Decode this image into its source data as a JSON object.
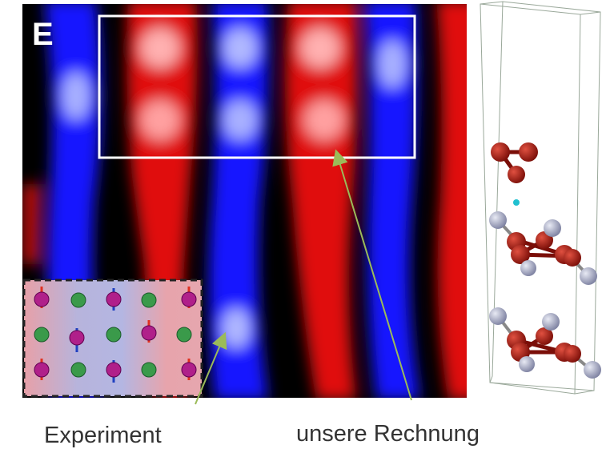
{
  "panel_label": "E",
  "labels": {
    "experiment": "Experiment",
    "calculation": "unsere Rechnung"
  }
}
